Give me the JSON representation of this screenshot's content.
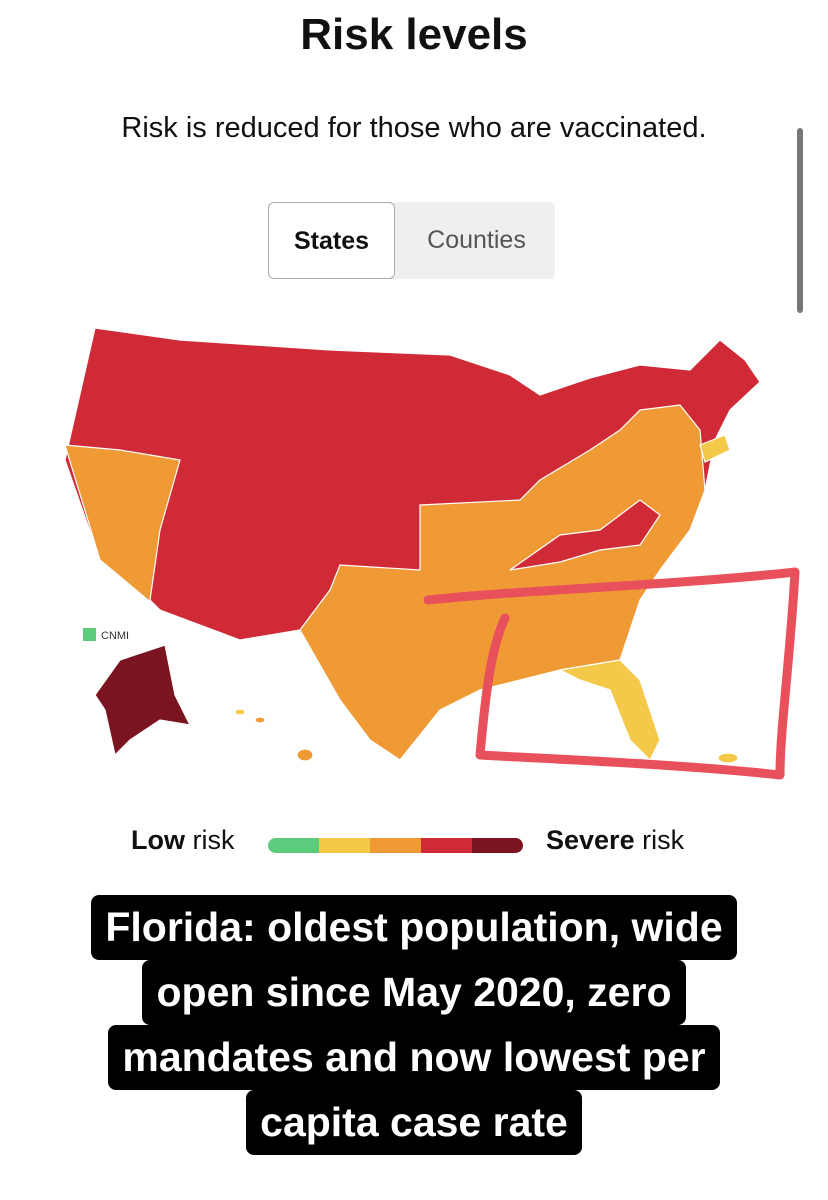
{
  "header": {
    "title": "Risk levels",
    "subtitle": "Risk is reduced for those who are vaccinated."
  },
  "toggle": {
    "options": [
      "States",
      "Counties"
    ]
  },
  "map": {
    "inset_label": "CNMI"
  },
  "legend": {
    "low": {
      "bold": "Low",
      "rest": "risk"
    },
    "high": {
      "bold": "Severe",
      "rest": "risk"
    },
    "colors": [
      "#5ccc7c",
      "#f4c94a",
      "#f09a35",
      "#cf2a36",
      "#7a1420"
    ]
  },
  "caption": {
    "lines": [
      "Florida: oldest population, wide",
      "open since May 2020, zero",
      "mandates and now lowest per",
      "capita case rate"
    ]
  }
}
